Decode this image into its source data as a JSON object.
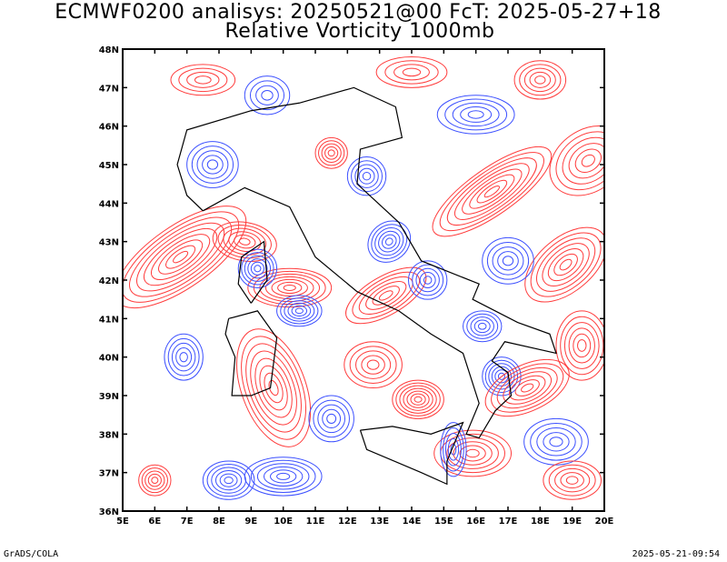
{
  "header": {
    "line1": "ECMWF0200 analisys: 20250521@00 FcT: 2025-05-27+18",
    "line2": "Relative Vorticity 1000mb"
  },
  "footer": {
    "credit": "GrADS/COLA",
    "timestamp": "2025-05-21-09:54"
  },
  "map": {
    "lon_range": [
      5,
      20
    ],
    "lat_range": [
      36,
      48
    ],
    "lon_labels": [
      "5E",
      "6E",
      "7E",
      "8E",
      "9E",
      "10E",
      "11E",
      "12E",
      "13E",
      "14E",
      "15E",
      "16E",
      "17E",
      "18E",
      "19E",
      "20E"
    ],
    "lat_labels": [
      "36N",
      "37N",
      "38N",
      "39N",
      "40N",
      "41N",
      "42N",
      "43N",
      "44N",
      "45N",
      "46N",
      "47N",
      "48N"
    ],
    "colors": {
      "positive": "#ff3c3c",
      "negative": "#3c50ff",
      "coast": "#000000",
      "zero": "#b46ecc"
    }
  }
}
